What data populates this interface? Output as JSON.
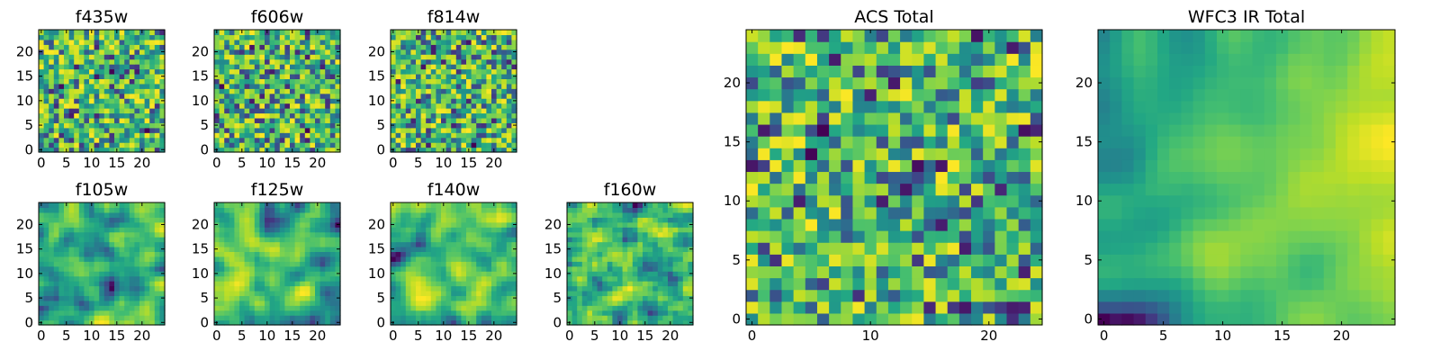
{
  "chart_data": [
    {
      "type": "heatmap",
      "title": "f435w",
      "size": 25,
      "seed": 11,
      "smooth": 0,
      "xticks": [
        0,
        5,
        10,
        15,
        20
      ],
      "yticks": [
        0,
        5,
        10,
        15,
        20
      ],
      "xlim": [
        -0.5,
        24.5
      ],
      "ylim": [
        -0.5,
        24.5
      ],
      "colormap": "viridis"
    },
    {
      "type": "heatmap",
      "title": "f606w",
      "size": 25,
      "seed": 23,
      "smooth": 0,
      "xticks": [
        0,
        5,
        10,
        15,
        20
      ],
      "yticks": [
        0,
        5,
        10,
        15,
        20
      ],
      "xlim": [
        -0.5,
        24.5
      ],
      "ylim": [
        -0.5,
        24.5
      ],
      "colormap": "viridis"
    },
    {
      "type": "heatmap",
      "title": "f814w",
      "size": 25,
      "seed": 37,
      "smooth": 0,
      "xticks": [
        0,
        5,
        10,
        15,
        20
      ],
      "yticks": [
        0,
        5,
        10,
        15,
        20
      ],
      "xlim": [
        -0.5,
        24.5
      ],
      "ylim": [
        -0.5,
        24.5
      ],
      "colormap": "viridis"
    },
    {
      "type": "heatmap",
      "title": "f105w",
      "size": 25,
      "seed": 41,
      "smooth": 2,
      "xticks": [
        0,
        5,
        10,
        15,
        20
      ],
      "yticks": [
        0,
        5,
        10,
        15,
        20
      ],
      "xlim": [
        -0.5,
        24.5
      ],
      "ylim": [
        -0.5,
        24.5
      ],
      "colormap": "viridis"
    },
    {
      "type": "heatmap",
      "title": "f125w",
      "size": 25,
      "seed": 53,
      "smooth": 2,
      "xticks": [
        0,
        5,
        10,
        15,
        20
      ],
      "yticks": [
        0,
        5,
        10,
        15,
        20
      ],
      "xlim": [
        -0.5,
        24.5
      ],
      "ylim": [
        -0.5,
        24.5
      ],
      "colormap": "viridis"
    },
    {
      "type": "heatmap",
      "title": "f140w",
      "size": 25,
      "seed": 67,
      "smooth": 2,
      "xticks": [
        0,
        5,
        10,
        15,
        20
      ],
      "yticks": [
        0,
        5,
        10,
        15,
        20
      ],
      "xlim": [
        -0.5,
        24.5
      ],
      "ylim": [
        -0.5,
        24.5
      ],
      "colormap": "viridis"
    },
    {
      "type": "heatmap",
      "title": "f160w",
      "size": 25,
      "seed": 71,
      "smooth": 1,
      "xticks": [
        0,
        5,
        10,
        15,
        20
      ],
      "yticks": [
        0,
        5,
        10,
        15,
        20
      ],
      "xlim": [
        -0.5,
        24.5
      ],
      "ylim": [
        -0.5,
        24.5
      ],
      "colormap": "viridis"
    },
    {
      "type": "heatmap",
      "title": "ACS Total",
      "size": 25,
      "seed": 83,
      "smooth": 0,
      "xticks": [
        0,
        10,
        20
      ],
      "yticks": [
        0,
        5,
        10,
        15,
        20
      ],
      "xlim": [
        -0.5,
        24.5
      ],
      "ylim": [
        -0.5,
        24.5
      ],
      "colormap": "viridis"
    },
    {
      "type": "heatmap",
      "title": "WFC3 IR Total",
      "size": 25,
      "seed": 97,
      "smooth": 3,
      "gradient": 0.5,
      "xticks": [
        0,
        5,
        10,
        15,
        20
      ],
      "yticks": [
        0,
        5,
        10,
        15,
        20
      ],
      "xlim": [
        -0.5,
        24.5
      ],
      "ylim": [
        -0.5,
        24.5
      ],
      "colormap": "viridis"
    }
  ]
}
